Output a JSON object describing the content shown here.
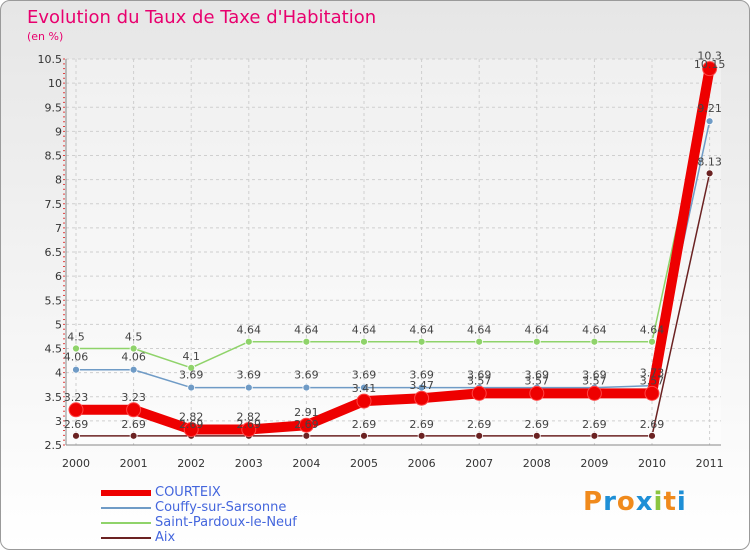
{
  "header": {
    "title": "Evolution du Taux de Taxe d'Habitation",
    "subtitle": "(en %)"
  },
  "logo": {
    "text": "Proxiti",
    "colors": [
      "#f08a1c",
      "#1e8fd6",
      "#f08a1c",
      "#1e8fd6",
      "#8bc53f",
      "#f08a1c",
      "#1e8fd6"
    ]
  },
  "chart_data": {
    "type": "line",
    "title": "Evolution du Taux de Taxe d'Habitation",
    "ylabel": "(en %)",
    "xlabel": "",
    "x": [
      "2000",
      "2001",
      "2002",
      "2003",
      "2004",
      "2005",
      "2006",
      "2007",
      "2008",
      "2009",
      "2010",
      "2011"
    ],
    "ylim": [
      2.5,
      10.5
    ],
    "yticks": [
      "2.5",
      "3",
      "3.5",
      "4",
      "4.5",
      "5",
      "5.5",
      "6",
      "6.5",
      "7",
      "7.5",
      "8",
      "8.5",
      "9",
      "9.5",
      "10",
      "10.5"
    ],
    "grid": true,
    "legend_position": "bottom-left",
    "series": [
      {
        "name": "COURTEIX",
        "color": "#ee0000",
        "emphasis": true,
        "values": [
          3.23,
          3.23,
          2.82,
          2.82,
          2.91,
          3.41,
          3.47,
          3.57,
          3.57,
          3.57,
          3.57,
          10.3
        ],
        "labels": [
          "3.23",
          "3.23",
          "2.82",
          "2.82",
          "2.91",
          "3.41",
          "3.47",
          "3.57",
          "3.57",
          "3.57",
          "3.57",
          "10.3"
        ]
      },
      {
        "name": "Couffy-sur-Sarsonne",
        "color": "#6f9bc6",
        "values": [
          4.06,
          4.06,
          3.69,
          3.69,
          3.69,
          3.69,
          3.69,
          3.69,
          3.69,
          3.69,
          3.73,
          9.21
        ],
        "labels": [
          "4.06",
          "4.06",
          "3.69",
          "3.69",
          "3.69",
          "3.69",
          "3.69",
          "3.69",
          "3.69",
          "3.69",
          "3.73",
          "9.21"
        ]
      },
      {
        "name": "Saint-Pardoux-le-Neuf",
        "color": "#8fd36a",
        "values": [
          4.5,
          4.5,
          4.1,
          4.64,
          4.64,
          4.64,
          4.64,
          4.64,
          4.64,
          4.64,
          4.64,
          10.15
        ],
        "labels": [
          "4.5",
          "4.5",
          "4.1",
          "4.64",
          "4.64",
          "4.64",
          "4.64",
          "4.64",
          "4.64",
          "4.64",
          "4.64",
          "10.15"
        ]
      },
      {
        "name": "Aix",
        "color": "#6b2222",
        "values": [
          2.69,
          2.69,
          2.69,
          2.69,
          2.69,
          2.69,
          2.69,
          2.69,
          2.69,
          2.69,
          2.69,
          8.13
        ],
        "labels": [
          "2.69",
          "2.69",
          "2.69",
          "2.69",
          "2.69",
          "2.69",
          "2.69",
          "2.69",
          "2.69",
          "2.69",
          "2.69",
          "8.13"
        ]
      }
    ]
  },
  "legend": {
    "items": [
      {
        "label": "COURTEIX",
        "color": "#ee0000"
      },
      {
        "label": "Couffy-sur-Sarsonne",
        "color": "#6f9bc6"
      },
      {
        "label": "Saint-Pardoux-le-Neuf",
        "color": "#8fd36a"
      },
      {
        "label": "Aix",
        "color": "#6b2222"
      }
    ]
  }
}
